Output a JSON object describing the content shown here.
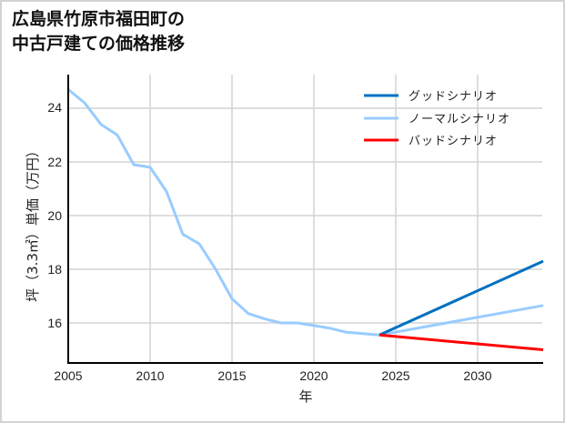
{
  "title": {
    "line1": "広島県竹原市福田町の",
    "line2": "中古戸建ての価格推移"
  },
  "axes": {
    "xlabel": "年",
    "ylabel": "坪（3.3㎡）単価（万円）",
    "xticks": [
      "2005",
      "2010",
      "2015",
      "2020",
      "2025",
      "2030"
    ],
    "yticks": [
      "16",
      "18",
      "20",
      "22",
      "24"
    ]
  },
  "legend": {
    "items": [
      {
        "label": "グッドシナリオ",
        "color": "#0070c0"
      },
      {
        "label": "ノーマルシナリオ",
        "color": "#99ccff"
      },
      {
        "label": "バッドシナリオ",
        "color": "#ff0000"
      }
    ]
  },
  "chart_data": {
    "type": "line",
    "title": "広島県竹原市福田町の中古戸建ての価格推移",
    "xlabel": "年",
    "ylabel": "坪（3.3㎡）単価（万円）",
    "xlim": [
      2005,
      2034
    ],
    "ylim": [
      14.5,
      25.5
    ],
    "grid": true,
    "legend_position": "upper right",
    "series": [
      {
        "name": "ノーマルシナリオ",
        "color": "#99ccff",
        "x": [
          2005,
          2006,
          2007,
          2008,
          2009,
          2010,
          2011,
          2012,
          2013,
          2014,
          2015,
          2016,
          2017,
          2018,
          2019,
          2020,
          2021,
          2022,
          2023,
          2024,
          2034
        ],
        "values": [
          24.7,
          24.2,
          23.4,
          23.0,
          21.9,
          21.8,
          20.9,
          19.3,
          18.95,
          18.0,
          16.9,
          16.35,
          16.15,
          16.0,
          16.0,
          15.9,
          15.8,
          15.65,
          15.6,
          15.55,
          16.65
        ]
      },
      {
        "name": "グッドシナリオ",
        "color": "#0070c0",
        "x": [
          2024,
          2034
        ],
        "values": [
          15.55,
          18.3
        ]
      },
      {
        "name": "バッドシナリオ",
        "color": "#ff0000",
        "x": [
          2024,
          2034
        ],
        "values": [
          15.55,
          15.0
        ]
      }
    ]
  }
}
